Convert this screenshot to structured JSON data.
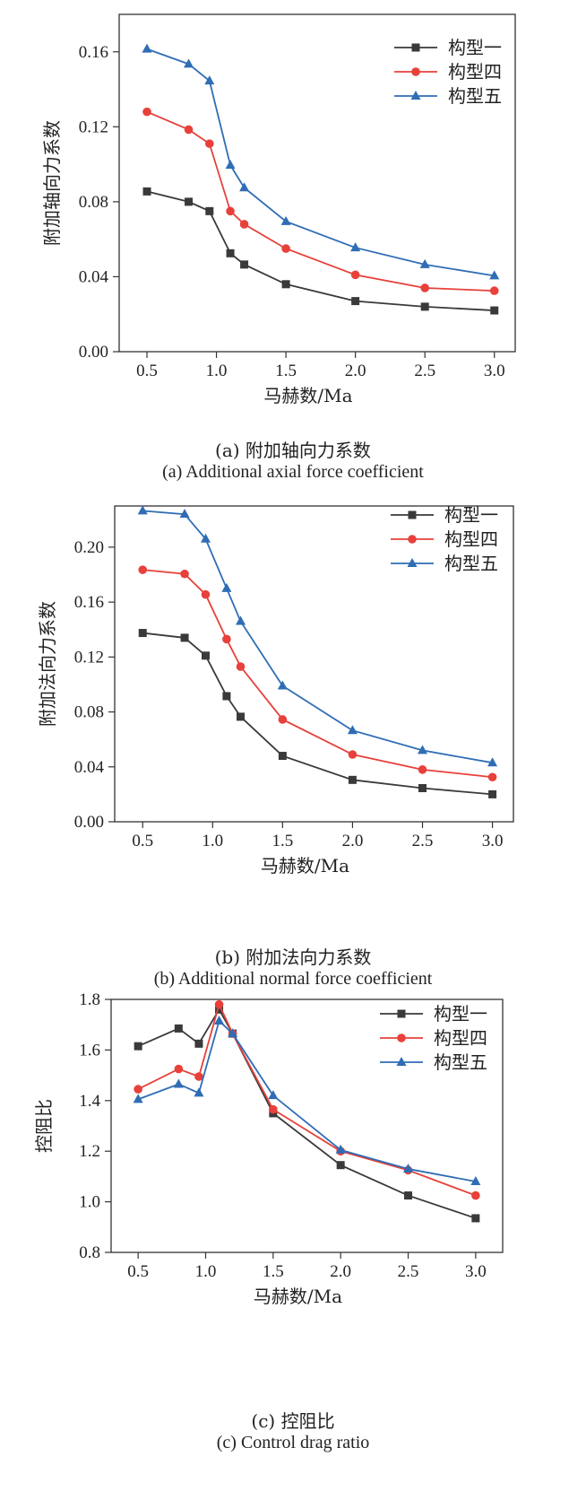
{
  "chart_data": [
    {
      "type": "line",
      "x": [
        0.5,
        0.8,
        0.95,
        1.1,
        1.2,
        1.5,
        2.0,
        2.5,
        3.0
      ],
      "series": [
        {
          "name": "构型一",
          "color": "#3a3a3a",
          "marker": "square",
          "values": [
            0.0855,
            0.08,
            0.075,
            0.0525,
            0.0465,
            0.036,
            0.027,
            0.024,
            0.022
          ]
        },
        {
          "name": "构型四",
          "color": "#e8403a",
          "marker": "circle",
          "values": [
            0.128,
            0.1185,
            0.111,
            0.075,
            0.068,
            0.055,
            0.041,
            0.034,
            0.0325
          ]
        },
        {
          "name": "构型五",
          "color": "#2f6db5",
          "marker": "triangle",
          "values": [
            0.1615,
            0.1535,
            0.1445,
            0.0995,
            0.0875,
            0.0695,
            0.0555,
            0.0465,
            0.0405
          ]
        }
      ],
      "xlabel": "马赫数/Ma",
      "ylabel": "附加轴向力系数",
      "xlim": [
        0.3,
        3.15
      ],
      "ylim": [
        0.0,
        0.18
      ],
      "xticks": [
        "0.5",
        "1.0",
        "1.5",
        "2.0",
        "2.5",
        "3.0"
      ],
      "yticks": [
        "0.00",
        "0.04",
        "0.08",
        "0.12",
        "0.16"
      ],
      "legend": "top-right",
      "grid": false
    },
    {
      "type": "line",
      "x": [
        0.5,
        0.8,
        0.95,
        1.1,
        1.2,
        1.5,
        2.0,
        2.5,
        3.0
      ],
      "series": [
        {
          "name": "构型一",
          "color": "#3a3a3a",
          "marker": "square",
          "values": [
            0.1375,
            0.134,
            0.121,
            0.0915,
            0.0765,
            0.048,
            0.0305,
            0.0245,
            0.02
          ]
        },
        {
          "name": "构型四",
          "color": "#e8403a",
          "marker": "circle",
          "values": [
            0.1835,
            0.1805,
            0.1655,
            0.133,
            0.113,
            0.0745,
            0.049,
            0.038,
            0.0325
          ]
        },
        {
          "name": "构型五",
          "color": "#2f6db5",
          "marker": "triangle",
          "values": [
            0.2265,
            0.224,
            0.206,
            0.17,
            0.146,
            0.099,
            0.0665,
            0.052,
            0.043
          ]
        }
      ],
      "xlabel": "马赫数/Ma",
      "ylabel": "附加法向力系数",
      "xlim": [
        0.3,
        3.15
      ],
      "ylim": [
        0.0,
        0.23
      ],
      "xticks": [
        "0.5",
        "1.0",
        "1.5",
        "2.0",
        "2.5",
        "3.0"
      ],
      "yticks": [
        "0.00",
        "0.04",
        "0.08",
        "0.12",
        "0.16",
        "0.20"
      ],
      "legend": "top-right",
      "grid": false
    },
    {
      "type": "line",
      "x": [
        0.5,
        0.8,
        0.95,
        1.1,
        1.2,
        1.5,
        2.0,
        2.5,
        3.0
      ],
      "series": [
        {
          "name": "构型一",
          "color": "#3a3a3a",
          "marker": "square",
          "values": [
            1.615,
            1.685,
            1.625,
            1.76,
            1.665,
            1.35,
            1.145,
            1.025,
            0.935
          ]
        },
        {
          "name": "构型四",
          "color": "#e8403a",
          "marker": "circle",
          "values": [
            1.445,
            1.525,
            1.495,
            1.78,
            1.665,
            1.365,
            1.2,
            1.125,
            1.025
          ]
        },
        {
          "name": "构型五",
          "color": "#2f6db5",
          "marker": "triangle",
          "values": [
            1.405,
            1.465,
            1.43,
            1.715,
            1.665,
            1.42,
            1.205,
            1.13,
            1.08
          ]
        }
      ],
      "xlabel": "马赫数/Ma",
      "ylabel": "控阻比",
      "xlim": [
        0.3,
        3.2
      ],
      "ylim": [
        0.8,
        1.8
      ],
      "xticks": [
        "0.5",
        "1.0",
        "1.5",
        "2.0",
        "2.5",
        "3.0"
      ],
      "yticks": [
        "0.8",
        "1.0",
        "1.2",
        "1.4",
        "1.6",
        "1.8"
      ],
      "legend": "top-right",
      "grid": false
    }
  ],
  "captions": [
    {
      "zh": "(a) 附加轴向力系数",
      "en": "(a) Additional axial force coefficient"
    },
    {
      "zh": "(b) 附加法向力系数",
      "en": "(b) Additional normal force coefficient"
    },
    {
      "zh": "(c) 控阻比",
      "en": "(c) Control drag ratio"
    }
  ]
}
